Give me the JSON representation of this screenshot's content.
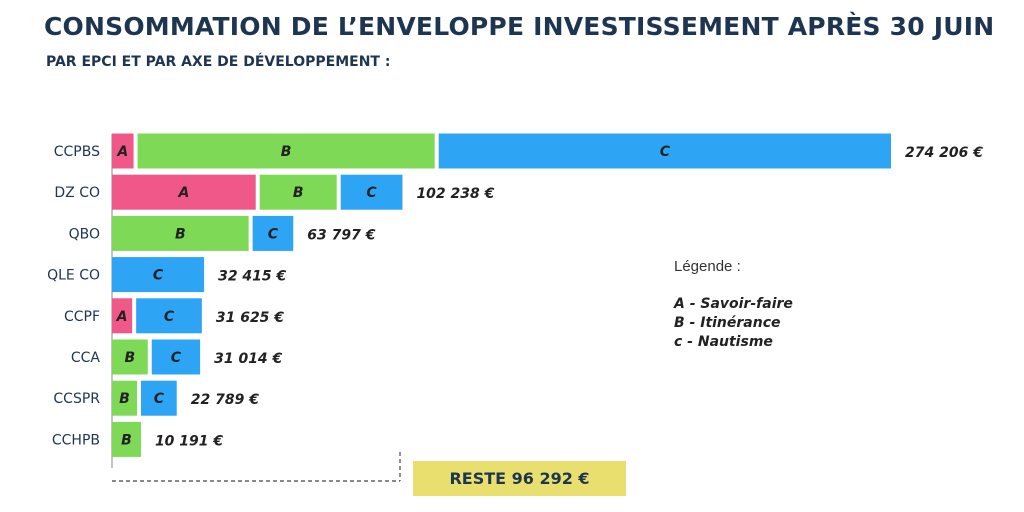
{
  "header": {
    "title": "CONSOMMATION DE L’ENVELOPPE INVESTISSEMENT APRÈS 30 JUIN",
    "subtitle": "PAR EPCI ET PAR AXE DE DÉVELOPPEMENT :"
  },
  "legend": {
    "title": "Légende :",
    "items": [
      "A - Savoir-faire",
      "B - Itinérance",
      "c - Nautisme"
    ]
  },
  "reste_label": "RESTE 96 292 €",
  "colors": {
    "A": "#f0588a",
    "B": "#7ed957",
    "C": "#2ea4f5"
  },
  "chart_data": {
    "type": "bar",
    "orientation": "horizontal",
    "stacked": true,
    "categories": [
      "CCPBS",
      "DZ CO",
      "QBO",
      "QLE CO",
      "CCPF",
      "CCA",
      "CCSPR",
      "CCHPB"
    ],
    "series": [
      {
        "key": "A",
        "name": "A",
        "values": [
          9000,
          52000,
          0,
          0,
          8500,
          0,
          0,
          0
        ]
      },
      {
        "key": "B",
        "name": "B",
        "values": [
          106000,
          28500,
          49500,
          0,
          0,
          14000,
          10200,
          10191
        ]
      },
      {
        "key": "C",
        "name": "C",
        "values": [
          159206,
          21738,
          14297,
          32415,
          23125,
          17014,
          12589,
          0
        ]
      }
    ],
    "totals": [
      "274 206 €",
      "102 238 €",
      "63 797 €",
      "32 415 €",
      "31 625 €",
      "31 014 €",
      "22 789 €",
      "10 191 €"
    ],
    "xlim": [
      0,
      274206
    ]
  }
}
